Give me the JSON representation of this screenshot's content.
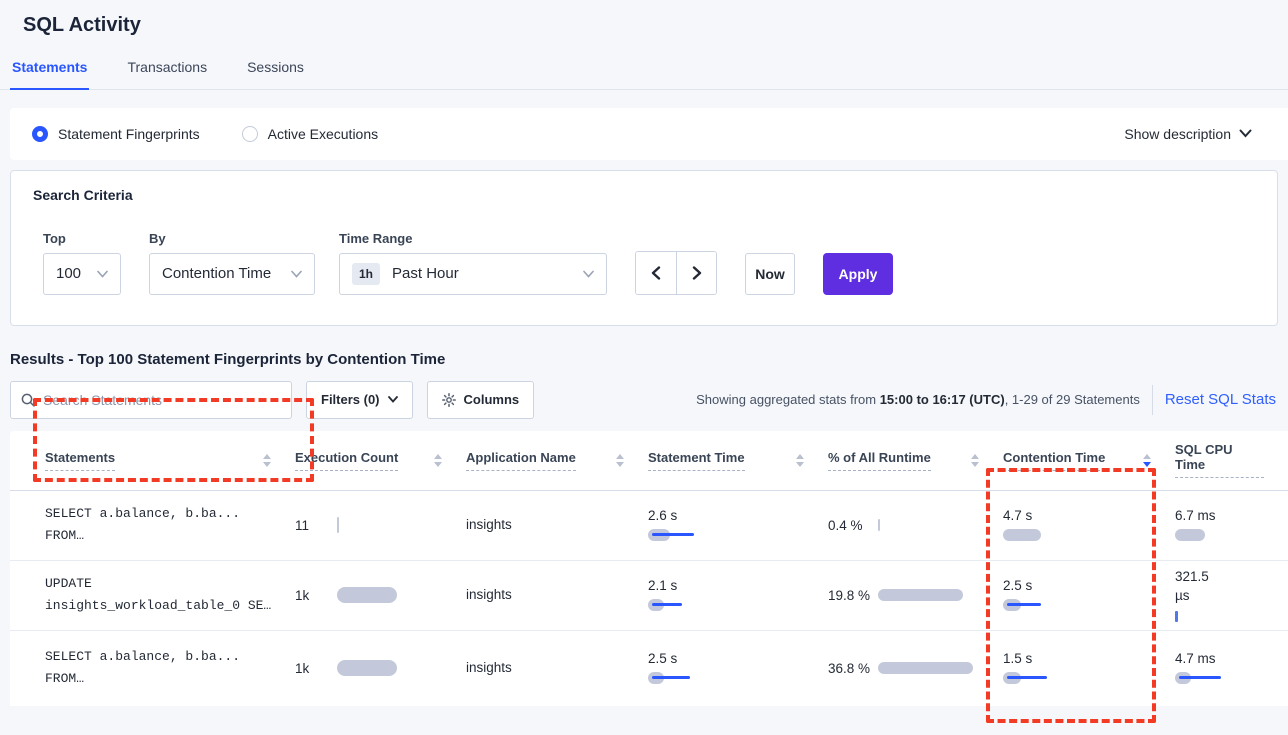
{
  "page": {
    "title": "SQL Activity"
  },
  "tabs": {
    "statements": "Statements",
    "transactions": "Transactions",
    "sessions": "Sessions"
  },
  "view_toggle": {
    "statement_fingerprints": "Statement Fingerprints",
    "active_executions": "Active Executions",
    "show_description": "Show description"
  },
  "search_criteria": {
    "heading": "Search Criteria",
    "top": {
      "label": "Top",
      "value": "100"
    },
    "by": {
      "label": "By",
      "value": "Contention Time"
    },
    "time_range": {
      "label": "Time Range",
      "badge": "1h",
      "value": "Past Hour"
    },
    "now_label": "Now",
    "apply_label": "Apply"
  },
  "results": {
    "heading": "Results - Top 100 Statement Fingerprints by Contention Time",
    "search_placeholder": "Search Statements",
    "filters_label": "Filters (0)",
    "columns_label": "Columns",
    "status": {
      "prefix": "Showing aggregated stats from ",
      "bold": "15:00 to 16:17 (UTC)",
      "suffix": ", 1-29 of 29 Statements"
    },
    "reset_link": "Reset SQL Stats"
  },
  "table": {
    "headers": {
      "statements": "Statements",
      "execution_count": "Execution Count",
      "application_name": "Application Name",
      "statement_time": "Statement Time",
      "pct_runtime": "% of All Runtime",
      "contention_time": "Contention Time",
      "sql_cpu_time": "SQL CPU Time"
    },
    "sort": {
      "column": "Contention Time",
      "direction": "desc"
    },
    "rows": [
      {
        "statement_line1": "SELECT a.balance, b.ba...",
        "statement_line2": "FROM…",
        "execution_count": {
          "value": "11",
          "bar": 2
        },
        "application": "insights",
        "statement_time": {
          "value": "2.6 s",
          "gray": 22,
          "blue": 42
        },
        "runtime": {
          "value": "0.4 %",
          "bar": 2
        },
        "contention_time": {
          "value": "4.7 s",
          "gray": 38,
          "blue": 0
        },
        "sql_cpu": {
          "value": "6.7 ms",
          "gray": 30,
          "blue": 0
        }
      },
      {
        "statement_line1": "UPDATE",
        "statement_line2": "insights_workload_table_0 SE…",
        "execution_count": {
          "value": "1k",
          "bar": 60
        },
        "application": "insights",
        "statement_time": {
          "value": "2.1 s",
          "gray": 16,
          "blue": 30
        },
        "runtime": {
          "value": "19.8 %",
          "bar": 85
        },
        "contention_time": {
          "value": "2.5 s",
          "gray": 18,
          "blue": 34
        },
        "sql_cpu": {
          "value": "321.5 µs",
          "gray": 0,
          "blue": 0,
          "tick": 3
        }
      },
      {
        "statement_line1": "SELECT a.balance, b.ba...",
        "statement_line2": "FROM…",
        "execution_count": {
          "value": "1k",
          "bar": 60
        },
        "application": "insights",
        "statement_time": {
          "value": "2.5 s",
          "gray": 16,
          "blue": 38
        },
        "runtime": {
          "value": "36.8 %",
          "bar": 95
        },
        "contention_time": {
          "value": "1.5 s",
          "gray": 18,
          "blue": 40
        },
        "sql_cpu": {
          "value": "4.7 ms",
          "gray": 16,
          "blue": 42
        }
      }
    ]
  },
  "colors": {
    "accent_blue": "#2956ff",
    "apply_purple": "#5e2ee0",
    "annotation_red": "#f23a24",
    "bar_gray": "#c3c9da",
    "background": "#f5f7fa"
  }
}
